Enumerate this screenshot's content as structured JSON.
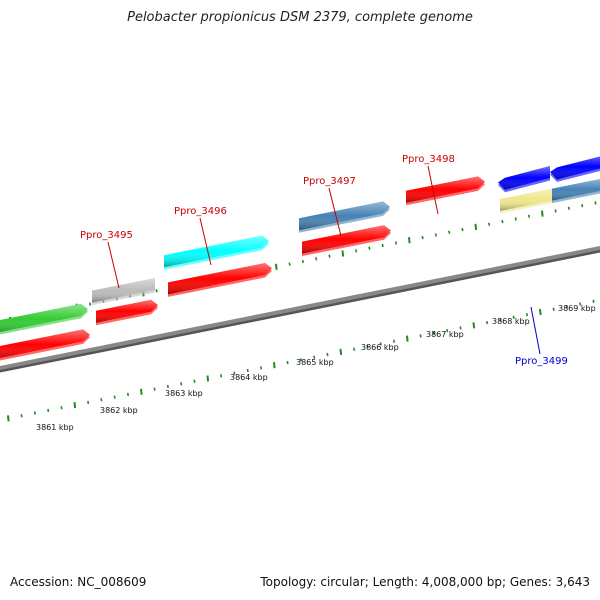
{
  "title": "Pelobacter propionicus DSM 2379, complete genome",
  "footer": {
    "accession": "Accession: NC_008609",
    "summary": "Topology: circular; Length: 4,008,000 bp; Genes: 3,643"
  },
  "scale": {
    "ticks": [
      "3861 kbp",
      "3862 kbp",
      "3863 kbp",
      "3864 kbp",
      "3865 kbp",
      "3866 kbp",
      "3867 kbp",
      "3868 kbp",
      "3869 kbp"
    ]
  },
  "genes": [
    {
      "label": "",
      "color": "#33cc33",
      "strand": "top"
    },
    {
      "label": "",
      "color": "#ff0000",
      "strand": "bottom"
    },
    {
      "label": "",
      "color": "#bbbbbb",
      "strand": "top"
    },
    {
      "label": "Ppro_3495",
      "color": "#ff0000",
      "strand": "bottom",
      "label_color": "#cc0000"
    },
    {
      "label": "Ppro_3496",
      "color": "#00ffff",
      "strand": "top",
      "label_color": "#cc0000"
    },
    {
      "label": "",
      "color": "#ff0000",
      "strand": "bottom"
    },
    {
      "label": "Ppro_3497",
      "color": "#4682b4",
      "strand": "top",
      "label_color": "#cc0000"
    },
    {
      "label": "",
      "color": "#ff0000",
      "strand": "bottom"
    },
    {
      "label": "Ppro_3498",
      "color": "#ff0000",
      "strand": "top",
      "label_color": "#cc0000"
    },
    {
      "label": "",
      "color": "#0000ff",
      "strand": "top"
    },
    {
      "label": "",
      "color": "#0000ff",
      "strand": "top"
    },
    {
      "label": "Ppro_3499",
      "color": "#f0e68c",
      "strand": "bottom",
      "label_color": "#0000cc"
    },
    {
      "label": "",
      "color": "#4682b4",
      "strand": "bottom"
    }
  ],
  "colors": {
    "backbone": "#888888",
    "tick": "#228b22"
  }
}
